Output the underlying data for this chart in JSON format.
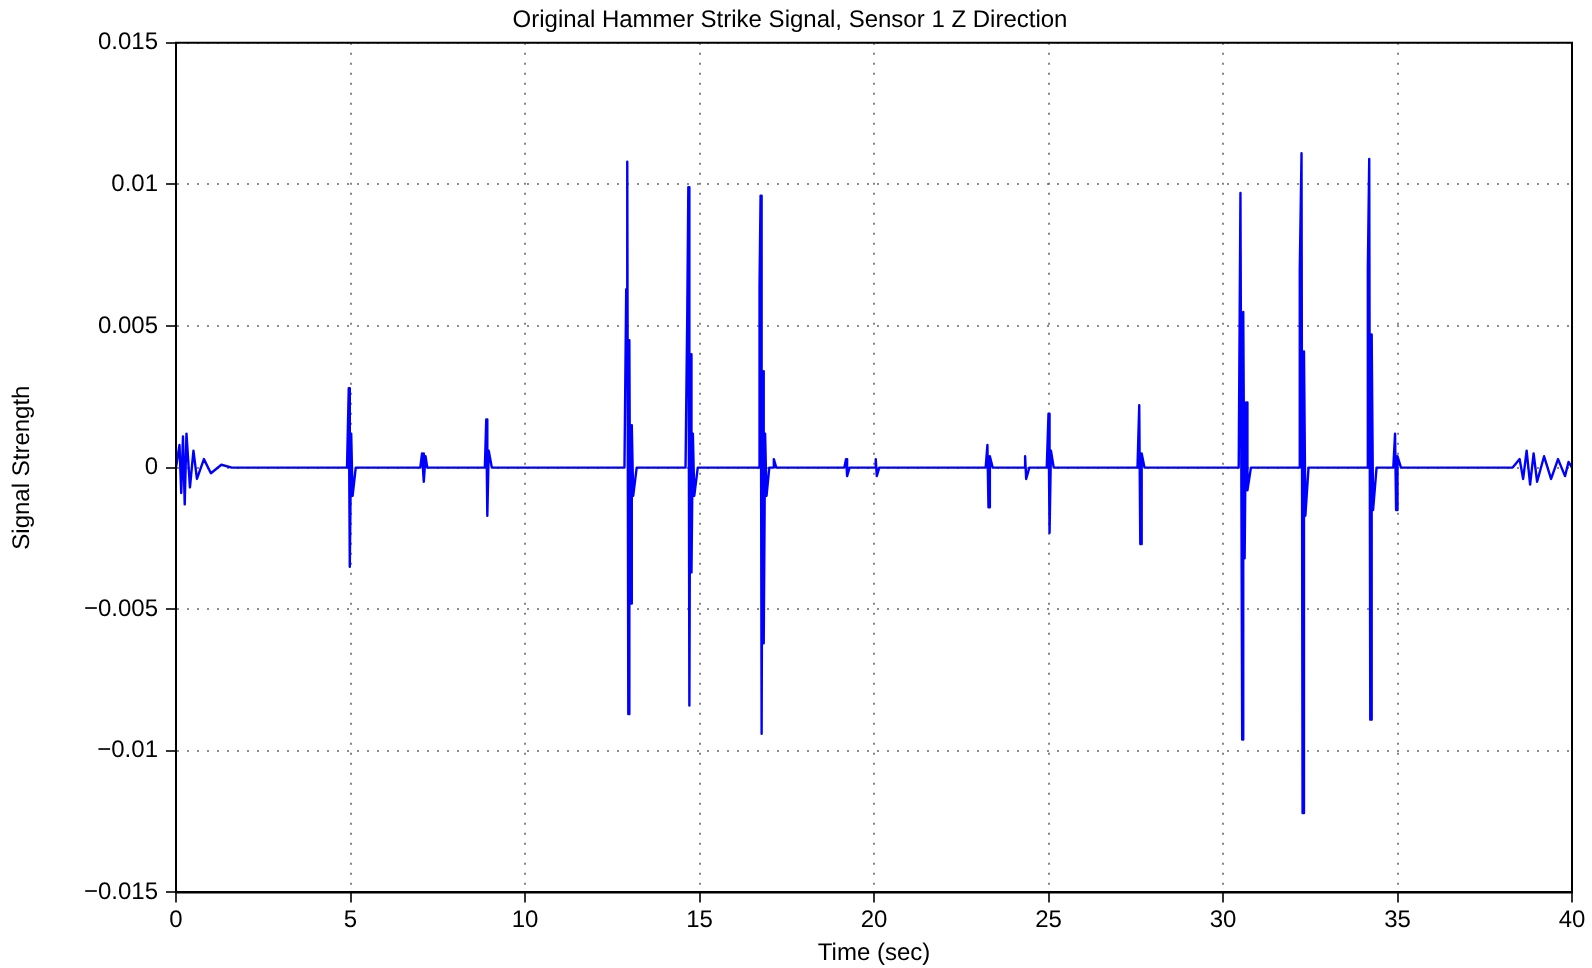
{
  "chart_data": {
    "type": "line",
    "title": "Original Hammer Strike Signal, Sensor 1 Z Direction",
    "xlabel": "Time (sec)",
    "ylabel": "Signal Strength",
    "xlim": [
      0,
      40
    ],
    "xticks": [
      0,
      5,
      10,
      15,
      20,
      25,
      30,
      35,
      40
    ],
    "ylim": [
      -0.015,
      0.015
    ],
    "yticks": [
      {
        "value": -0.015,
        "label": "−0.015"
      },
      {
        "value": -0.01,
        "label": "−0.01"
      },
      {
        "value": -0.005,
        "label": "−0.005"
      },
      0,
      0.005,
      0.01,
      0.015
    ],
    "grid": true,
    "marker": "none",
    "line_style": "solid",
    "series": [
      {
        "color": "#0000ff",
        "x": [
          0,
          0.1,
          0.15,
          0.2,
          0.25,
          0.3,
          0.4,
          0.5,
          0.6,
          0.8,
          1.0,
          1.3,
          1.6,
          4.9,
          4.95,
          4.98,
          5.02,
          5.06,
          5.15,
          7.0,
          7.05,
          7.1,
          7.15,
          7.2,
          8.85,
          8.89,
          8.92,
          8.96,
          9.05,
          12.85,
          12.9,
          12.93,
          12.96,
          12.99,
          13.02,
          13.06,
          13.1,
          13.2,
          14.6,
          14.65,
          14.68,
          14.71,
          14.74,
          14.77,
          14.81,
          14.85,
          14.95,
          16.7,
          16.72,
          16.75,
          16.78,
          16.81,
          16.84,
          16.88,
          16.92,
          17.0,
          17.1,
          17.13,
          17.2,
          19.15,
          19.2,
          19.23,
          19.3,
          20.0,
          20.05,
          20.08,
          20.15,
          23.2,
          23.25,
          23.28,
          23.32,
          23.4,
          24.3,
          24.33,
          24.36,
          24.45,
          24.95,
          25.0,
          25.03,
          25.07,
          25.15,
          27.55,
          27.6,
          27.63,
          27.67,
          27.75,
          30.45,
          30.5,
          30.55,
          30.58,
          30.62,
          30.66,
          30.7,
          30.8,
          32.15,
          32.2,
          32.25,
          32.28,
          32.32,
          32.36,
          32.45,
          34.1,
          34.15,
          34.19,
          34.22,
          34.26,
          34.3,
          34.4,
          34.88,
          34.93,
          34.96,
          35.0,
          35.1,
          38.3,
          38.5,
          38.6,
          38.7,
          38.8,
          38.9,
          39.0,
          39.2,
          39.4,
          39.6,
          39.8,
          39.9,
          40
        ],
        "values": [
          0,
          0.0008,
          -0.0009,
          0.0011,
          -0.0013,
          0.0012,
          -0.0007,
          0.0006,
          -0.0004,
          0.0003,
          -0.0002,
          0.0001,
          0,
          0,
          0.0028,
          -0.0035,
          0.0012,
          -0.001,
          0,
          0,
          0.0005,
          -0.0005,
          0.0004,
          0,
          0,
          0.0017,
          -0.0017,
          0.0006,
          0,
          0,
          0.0063,
          0.0108,
          -0.0087,
          0.0045,
          -0.0048,
          0.0015,
          -0.001,
          0,
          0,
          0.0055,
          0.0099,
          -0.0084,
          0.004,
          -0.0037,
          0.0012,
          -0.001,
          0,
          0,
          0.0064,
          0.0096,
          -0.0094,
          0.0034,
          -0.0062,
          0.0012,
          -0.001,
          0,
          0,
          0.0003,
          0,
          0,
          0.0003,
          -0.0003,
          0,
          0,
          0.0003,
          -0.0003,
          0,
          0,
          0.0008,
          -0.0014,
          0.0004,
          0,
          0,
          0.0004,
          -0.0004,
          0,
          0,
          0.0019,
          -0.0023,
          0.0006,
          0,
          0,
          0.0022,
          -0.0027,
          0.0005,
          0,
          0,
          0.0097,
          -0.0096,
          0.0055,
          -0.0032,
          0.0023,
          -0.0008,
          0,
          0,
          0.007,
          0.0111,
          -0.0122,
          0.0041,
          -0.0017,
          0,
          0,
          0.007,
          0.0109,
          -0.0089,
          0.0047,
          -0.0015,
          0,
          0,
          0.0012,
          -0.0015,
          0.0004,
          0,
          0,
          0.0003,
          -0.0004,
          0.0006,
          -0.0006,
          0.0005,
          -0.0005,
          0.0004,
          -0.0004,
          0.0003,
          -0.0003,
          0.0002,
          0
        ]
      }
    ]
  }
}
